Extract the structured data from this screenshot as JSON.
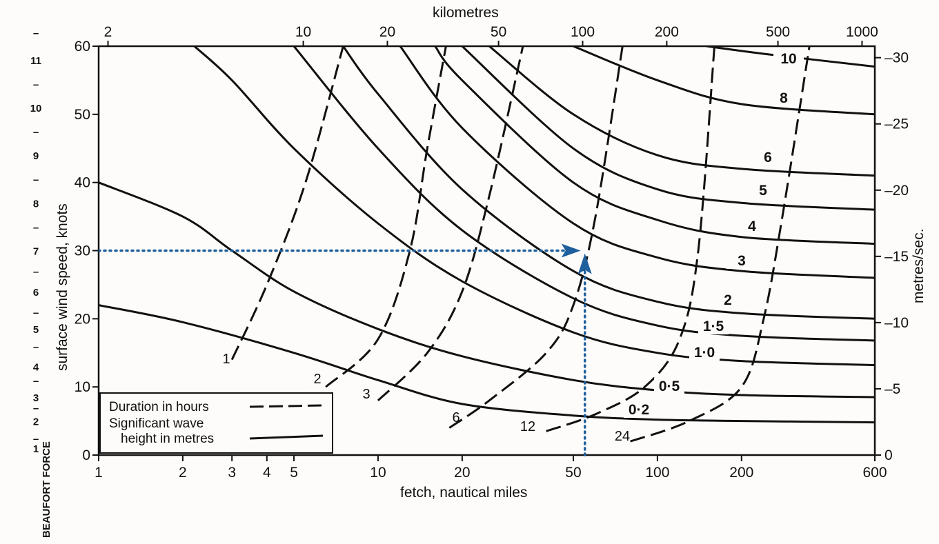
{
  "chart_data": {
    "type": "line",
    "x_axis": {
      "label": "fetch, nautical miles",
      "scale": "log",
      "range": [
        1,
        600
      ],
      "ticks": [
        {
          "value": 1,
          "label": "1"
        },
        {
          "value": 2,
          "label": "2"
        },
        {
          "value": 3,
          "label": "3"
        },
        {
          "value": 4,
          "label": "4"
        },
        {
          "value": 5,
          "label": "5"
        },
        {
          "value": 10,
          "label": "10"
        },
        {
          "value": 20,
          "label": "20"
        },
        {
          "value": 50,
          "label": "50"
        },
        {
          "value": 100,
          "label": "100"
        },
        {
          "value": 200,
          "label": "200"
        },
        {
          "value": 600,
          "label": "600"
        }
      ]
    },
    "x2_axis": {
      "label": "kilometres",
      "ticks": [
        {
          "value": 2,
          "label": "2"
        },
        {
          "value": 10,
          "label": "10"
        },
        {
          "value": 20,
          "label": "20"
        },
        {
          "value": 50,
          "label": "50"
        },
        {
          "value": 100,
          "label": "100"
        },
        {
          "value": 200,
          "label": "200"
        },
        {
          "value": 500,
          "label": "500"
        },
        {
          "value": 1000,
          "label": "1000"
        }
      ]
    },
    "y_axis": {
      "label": "surface wind speed, knots",
      "range": [
        0,
        60
      ],
      "ticks": [
        {
          "value": 0,
          "label": "0"
        },
        {
          "value": 10,
          "label": "10"
        },
        {
          "value": 20,
          "label": "20"
        },
        {
          "value": 30,
          "label": "30"
        },
        {
          "value": 40,
          "label": "40"
        },
        {
          "value": 50,
          "label": "50"
        },
        {
          "value": 60,
          "label": "60"
        }
      ]
    },
    "y2_axis": {
      "label": "metres/sec.",
      "ticks": [
        {
          "value": 0,
          "label": "0"
        },
        {
          "value": 5,
          "label": "5"
        },
        {
          "value": 10,
          "label": "10"
        },
        {
          "value": 15,
          "label": "15"
        },
        {
          "value": 20,
          "label": "20"
        },
        {
          "value": 25,
          "label": "25"
        },
        {
          "value": 30,
          "label": "30"
        }
      ]
    },
    "beaufort_scale": {
      "label": "BEAUFORT FORCE",
      "marks": [
        {
          "knots": 1,
          "label": "1"
        },
        {
          "knots": 2.5,
          "label": "–"
        },
        {
          "knots": 5,
          "label": "2"
        },
        {
          "knots": 7,
          "label": "–"
        },
        {
          "knots": 8.5,
          "label": "3"
        },
        {
          "knots": 11,
          "label": "–"
        },
        {
          "knots": 13,
          "label": "4"
        },
        {
          "knots": 16,
          "label": "–"
        },
        {
          "knots": 18.5,
          "label": "5"
        },
        {
          "knots": 21,
          "label": "–"
        },
        {
          "knots": 24,
          "label": "6"
        },
        {
          "knots": 27,
          "label": "–"
        },
        {
          "knots": 30,
          "label": "7"
        },
        {
          "knots": 33.5,
          "label": "–"
        },
        {
          "knots": 37,
          "label": "8"
        },
        {
          "knots": 40.5,
          "label": "–"
        },
        {
          "knots": 44,
          "label": "9"
        },
        {
          "knots": 47.5,
          "label": "–"
        },
        {
          "knots": 51,
          "label": "10"
        },
        {
          "knots": 54.5,
          "label": "–"
        },
        {
          "knots": 58,
          "label": "11"
        },
        {
          "knots": 62,
          "label": "–"
        }
      ]
    },
    "legend": {
      "placement": "bottom-left",
      "items": [
        {
          "label": "Duration in hours",
          "style": "dashed"
        },
        {
          "label": "Significant wave",
          "label2": "height in metres",
          "style": "solid"
        }
      ]
    },
    "wave_height_series": [
      {
        "label": "0·2",
        "points": [
          [
            1,
            22
          ],
          [
            2,
            19.5
          ],
          [
            5,
            15
          ],
          [
            10,
            11
          ],
          [
            20,
            7.5
          ],
          [
            50,
            5.8
          ],
          [
            100,
            5.2
          ],
          [
            200,
            5
          ],
          [
            600,
            4.8
          ]
        ]
      },
      {
        "label": "0·5",
        "points": [
          [
            1,
            40
          ],
          [
            2,
            35
          ],
          [
            3,
            30
          ],
          [
            5,
            24
          ],
          [
            10,
            18.5
          ],
          [
            20,
            14.5
          ],
          [
            50,
            11
          ],
          [
            100,
            9.5
          ],
          [
            200,
            8.8
          ],
          [
            600,
            8.5
          ]
        ]
      },
      {
        "label": "1·0",
        "points": [
          [
            2.2,
            60
          ],
          [
            3,
            55
          ],
          [
            5,
            45
          ],
          [
            10,
            34
          ],
          [
            20,
            25.5
          ],
          [
            50,
            18
          ],
          [
            100,
            15
          ],
          [
            200,
            13.8
          ],
          [
            600,
            13.2
          ]
        ]
      },
      {
        "label": "1·5",
        "points": [
          [
            5,
            60
          ],
          [
            10,
            45
          ],
          [
            20,
            33
          ],
          [
            50,
            23
          ],
          [
            100,
            19
          ],
          [
            200,
            17.5
          ],
          [
            600,
            16.8
          ]
        ]
      },
      {
        "label": "2",
        "points": [
          [
            7.5,
            60
          ],
          [
            10,
            53
          ],
          [
            20,
            39
          ],
          [
            50,
            27
          ],
          [
            100,
            22.5
          ],
          [
            200,
            20.8
          ],
          [
            600,
            20
          ]
        ]
      },
      {
        "label": "3",
        "points": [
          [
            12,
            60
          ],
          [
            20,
            48
          ],
          [
            50,
            34
          ],
          [
            100,
            29
          ],
          [
            200,
            27
          ],
          [
            600,
            26
          ]
        ]
      },
      {
        "label": "4",
        "points": [
          [
            16,
            60
          ],
          [
            20,
            55
          ],
          [
            50,
            40
          ],
          [
            100,
            34.5
          ],
          [
            200,
            32
          ],
          [
            600,
            31
          ]
        ]
      },
      {
        "label": "5",
        "points": [
          [
            20,
            60
          ],
          [
            50,
            45
          ],
          [
            100,
            39
          ],
          [
            200,
            37
          ],
          [
            600,
            36
          ]
        ]
      },
      {
        "label": "6",
        "points": [
          [
            25,
            60
          ],
          [
            50,
            50
          ],
          [
            100,
            44
          ],
          [
            200,
            42
          ],
          [
            600,
            41
          ]
        ]
      },
      {
        "label": "8",
        "points": [
          [
            50,
            60
          ],
          [
            100,
            55
          ],
          [
            200,
            51.5
          ],
          [
            600,
            50
          ]
        ]
      },
      {
        "label": "10",
        "points": [
          [
            150,
            60
          ],
          [
            250,
            58.8
          ],
          [
            600,
            57
          ]
        ]
      }
    ],
    "duration_series": [
      {
        "label": "1",
        "points": [
          [
            3,
            14
          ],
          [
            4,
            25
          ],
          [
            5.5,
            40
          ],
          [
            7.5,
            60
          ]
        ]
      },
      {
        "label": "2",
        "points": [
          [
            6.5,
            10
          ],
          [
            10,
            17
          ],
          [
            13,
            30
          ],
          [
            15,
            45
          ],
          [
            17.5,
            60
          ]
        ]
      },
      {
        "label": "3",
        "points": [
          [
            10,
            8
          ],
          [
            15,
            15
          ],
          [
            20,
            24
          ],
          [
            25,
            38
          ],
          [
            33,
            60
          ]
        ]
      },
      {
        "label": "6",
        "points": [
          [
            18,
            4
          ],
          [
            25,
            8
          ],
          [
            40,
            15
          ],
          [
            50,
            22
          ],
          [
            60,
            35
          ],
          [
            75,
            60
          ]
        ]
      },
      {
        "label": "12",
        "points": [
          [
            40,
            3.5
          ],
          [
            60,
            6
          ],
          [
            90,
            10
          ],
          [
            120,
            17
          ],
          [
            140,
            30
          ],
          [
            160,
            60
          ]
        ]
      },
      {
        "label": "24",
        "points": [
          [
            80,
            2
          ],
          [
            130,
            5
          ],
          [
            200,
            10
          ],
          [
            240,
            20
          ],
          [
            280,
            35
          ],
          [
            350,
            60
          ]
        ]
      }
    ],
    "example": {
      "wind_knots": 30,
      "fetch_nm": 55
    }
  }
}
